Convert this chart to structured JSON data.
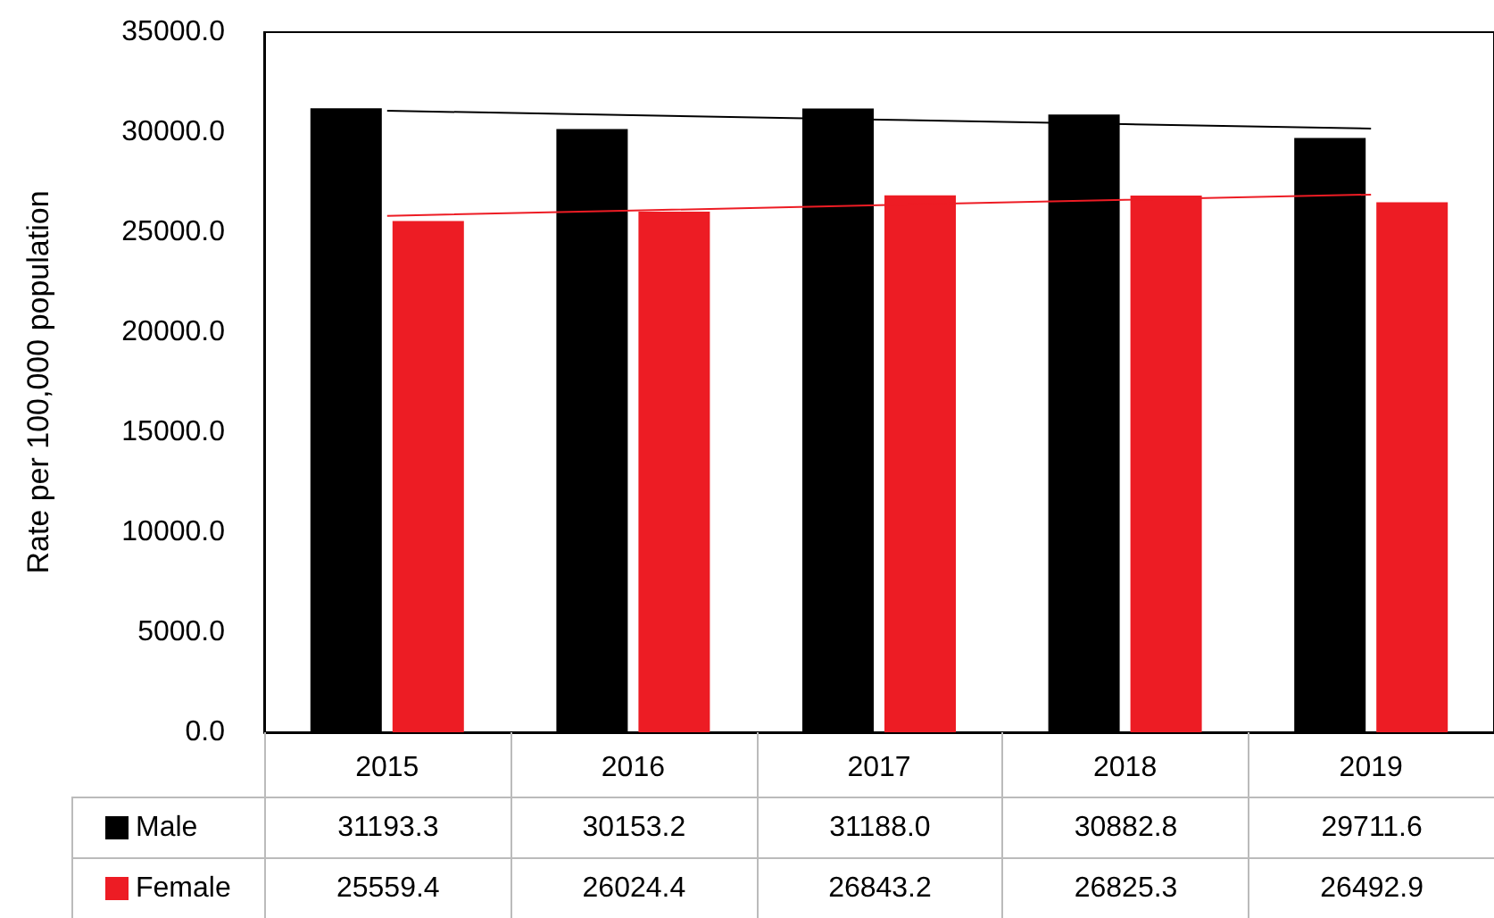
{
  "chart_data": {
    "type": "bar",
    "ylabel": "Rate per 100,000 population",
    "categories": [
      "2015",
      "2016",
      "2017",
      "2018",
      "2019"
    ],
    "series": [
      {
        "name": "Male",
        "color": "#000000",
        "values": [
          31193.3,
          30153.2,
          31188.0,
          30882.8,
          29711.6
        ],
        "value_labels": [
          "31193.3",
          "30153.2",
          "31188.0",
          "30882.8",
          "29711.6"
        ]
      },
      {
        "name": "Female",
        "color": "#ed1c24",
        "values": [
          25559.4,
          26024.4,
          26843.2,
          26825.3,
          26492.9
        ],
        "value_labels": [
          "25559.4",
          "26024.4",
          "26843.2",
          "26825.3",
          "26492.9"
        ]
      },
      {
        "type": "line",
        "color": "#000000",
        "values": [
          31070,
          30850,
          30630,
          30400,
          30180
        ]
      },
      {
        "type": "line",
        "color": "#ed1c24",
        "values": [
          25820,
          26080,
          26350,
          26620,
          26880
        ]
      }
    ],
    "ylim": [
      0,
      35000
    ],
    "yticks": [
      {
        "value": 0,
        "label": "0.0"
      },
      {
        "value": 5000,
        "label": "5000.0"
      },
      {
        "value": 10000,
        "label": "10000.0"
      },
      {
        "value": 15000,
        "label": "15000.0"
      },
      {
        "value": 20000,
        "label": "20000.0"
      },
      {
        "value": 25000,
        "label": "25000.0"
      },
      {
        "value": 30000,
        "label": "30000.0"
      },
      {
        "value": 35000,
        "label": "35000.0"
      }
    ],
    "marker": "none",
    "line_style": "solid",
    "grid": false,
    "legend": "bottom left"
  }
}
